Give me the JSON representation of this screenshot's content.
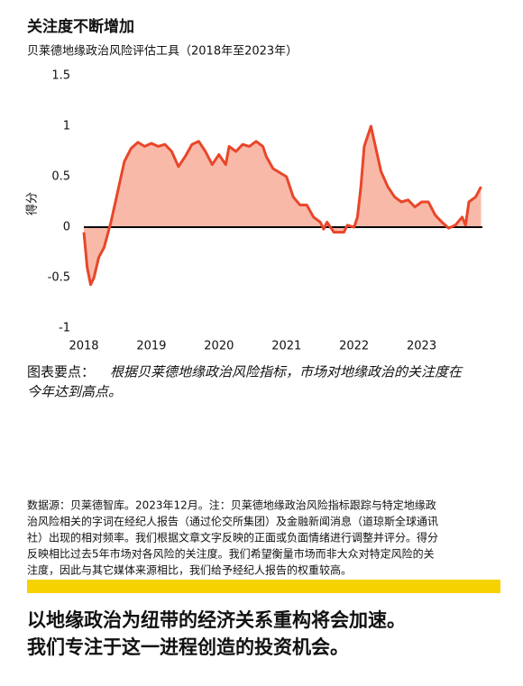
{
  "chart_data": {
    "type": "area",
    "title": "关注度不断增加",
    "subtitle": "贝莱德地缘政治风险评估工具（2018年至2023年）",
    "ylabel": "得分",
    "xlim": [
      2018,
      2023.9
    ],
    "xticks": [
      2018,
      2019,
      2020,
      2021,
      2022,
      2023
    ],
    "ylim": [
      -1,
      1.5
    ],
    "yticks": [
      {
        "value": -1,
        "label": "-1"
      },
      {
        "value": -0.5,
        "label": "-0.5"
      },
      0,
      0.5,
      1,
      1.5
    ],
    "line_color": "#e8462a",
    "fill_color": "#f9b9a9",
    "x": [
      2018.0,
      2018.05,
      2018.1,
      2018.15,
      2018.22,
      2018.3,
      2018.4,
      2018.5,
      2018.6,
      2018.7,
      2018.8,
      2018.9,
      2019.0,
      2019.1,
      2019.2,
      2019.3,
      2019.4,
      2019.5,
      2019.6,
      2019.7,
      2019.8,
      2019.9,
      2020.0,
      2020.1,
      2020.15,
      2020.25,
      2020.35,
      2020.45,
      2020.55,
      2020.65,
      2020.7,
      2020.8,
      2020.9,
      2021.0,
      2021.1,
      2021.2,
      2021.3,
      2021.4,
      2021.5,
      2021.55,
      2021.6,
      2021.7,
      2021.8,
      2021.85,
      2021.9,
      2022.0,
      2022.05,
      2022.1,
      2022.15,
      2022.25,
      2022.3,
      2022.4,
      2022.5,
      2022.6,
      2022.7,
      2022.8,
      2022.9,
      2023.0,
      2023.1,
      2023.2,
      2023.3,
      2023.4,
      2023.5,
      2023.6,
      2023.65,
      2023.7,
      2023.8,
      2023.88
    ],
    "values": [
      -0.05,
      -0.4,
      -0.57,
      -0.5,
      -0.3,
      -0.2,
      0.05,
      0.35,
      0.65,
      0.78,
      0.84,
      0.8,
      0.83,
      0.8,
      0.82,
      0.75,
      0.6,
      0.7,
      0.82,
      0.85,
      0.75,
      0.62,
      0.72,
      0.62,
      0.8,
      0.75,
      0.82,
      0.8,
      0.85,
      0.8,
      0.7,
      0.58,
      0.54,
      0.5,
      0.3,
      0.22,
      0.22,
      0.1,
      0.05,
      -0.02,
      0.05,
      -0.05,
      -0.05,
      -0.05,
      0.02,
      0.0,
      0.1,
      0.4,
      0.8,
      1.0,
      0.85,
      0.55,
      0.4,
      0.3,
      0.25,
      0.27,
      0.2,
      0.25,
      0.25,
      0.12,
      0.05,
      -0.01,
      0.02,
      0.1,
      0.02,
      0.25,
      0.3,
      0.4
    ],
    "takeaway_label": "图表要点：",
    "takeaway_lines": [
      "根据贝莱德地缘政治风险指标，市场对地缘政治的关注度在",
      "今年达到高点。"
    ],
    "source_lines": [
      "数据源：贝莱德智库。2023年12月。注：贝莱德地缘政治风险指标跟踪与特定地缘政",
      "治风险相关的字词在经纪人报告（通过伦交所集团）及金融新闻消息（道琼斯全球通讯",
      "社）出现的相对频率。我们根据文章文字反映的正面或负面情绪进行调整并评分。得分",
      "反映相比过去5年市场对各风险的关注度。我们希望衡量市场而非大众对特定风险的关",
      "注度，因此与其它媒体来源相比，我们给予经纪人报告的权重较高。"
    ],
    "headline_lines": [
      "以地缘政治为纽带的经济关系重构将会加速。",
      "我们专注于这一进程创造的投资机会。"
    ]
  }
}
